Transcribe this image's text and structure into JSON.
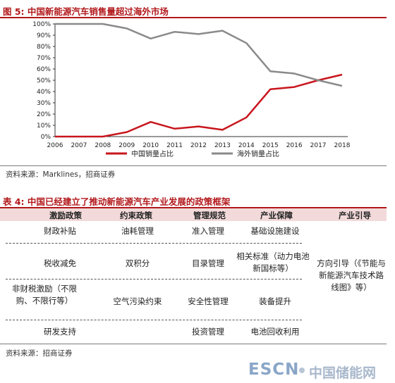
{
  "figure": {
    "title": "图 5:  中国新能源汽车销售量超过海外市场",
    "source": "资料来源：Marklines，招商证券"
  },
  "chart_data": {
    "type": "line",
    "x": [
      "2006",
      "2007",
      "2008",
      "2009",
      "2010",
      "2011",
      "2012",
      "2013",
      "2014",
      "2015",
      "2016",
      "2017",
      "2018"
    ],
    "ylim": [
      0,
      100
    ],
    "y_ticks": [
      "0%",
      "10%",
      "20%",
      "30%",
      "40%",
      "50%",
      "60%",
      "70%",
      "80%",
      "90%",
      "100%"
    ],
    "grid": false,
    "legend_position": "bottom",
    "series": [
      {
        "name": "中国销量占比",
        "color": "#c8161d",
        "values": [
          0,
          0,
          0,
          4,
          13,
          7,
          9,
          6,
          17,
          42,
          44,
          50,
          55
        ]
      },
      {
        "name": "海外销量占比",
        "color": "#8a8a8a",
        "values": [
          100,
          100,
          100,
          96,
          87,
          93,
          91,
          94,
          83,
          58,
          56,
          50,
          45
        ]
      }
    ]
  },
  "table": {
    "title": "表 4:  中国已经建立了推动新能源汽车产业发展的政策框架",
    "headers": [
      "激励政策",
      "约束政策",
      "管理规范",
      "产业保障",
      "产业引导"
    ],
    "rows": [
      [
        "财政补贴",
        "油耗管理",
        "准入管理",
        "基础设施建设"
      ],
      [
        "税收减免",
        "双积分",
        "目录管理",
        "相关标准（动力电池新国标等）"
      ],
      [
        "非财税激励（不限购、不限行等）",
        "空气污染约束",
        "安全性管理",
        "装备提升"
      ],
      [
        "研发支持",
        "",
        "投资管理",
        "电池回收利用"
      ]
    ],
    "guidance": "方向引导（《节能与新能源汽车技术路线图》等）",
    "source": "资料来源：招商证券"
  },
  "watermark": {
    "latin": "ESCN",
    "chinese": "中国储能网"
  }
}
